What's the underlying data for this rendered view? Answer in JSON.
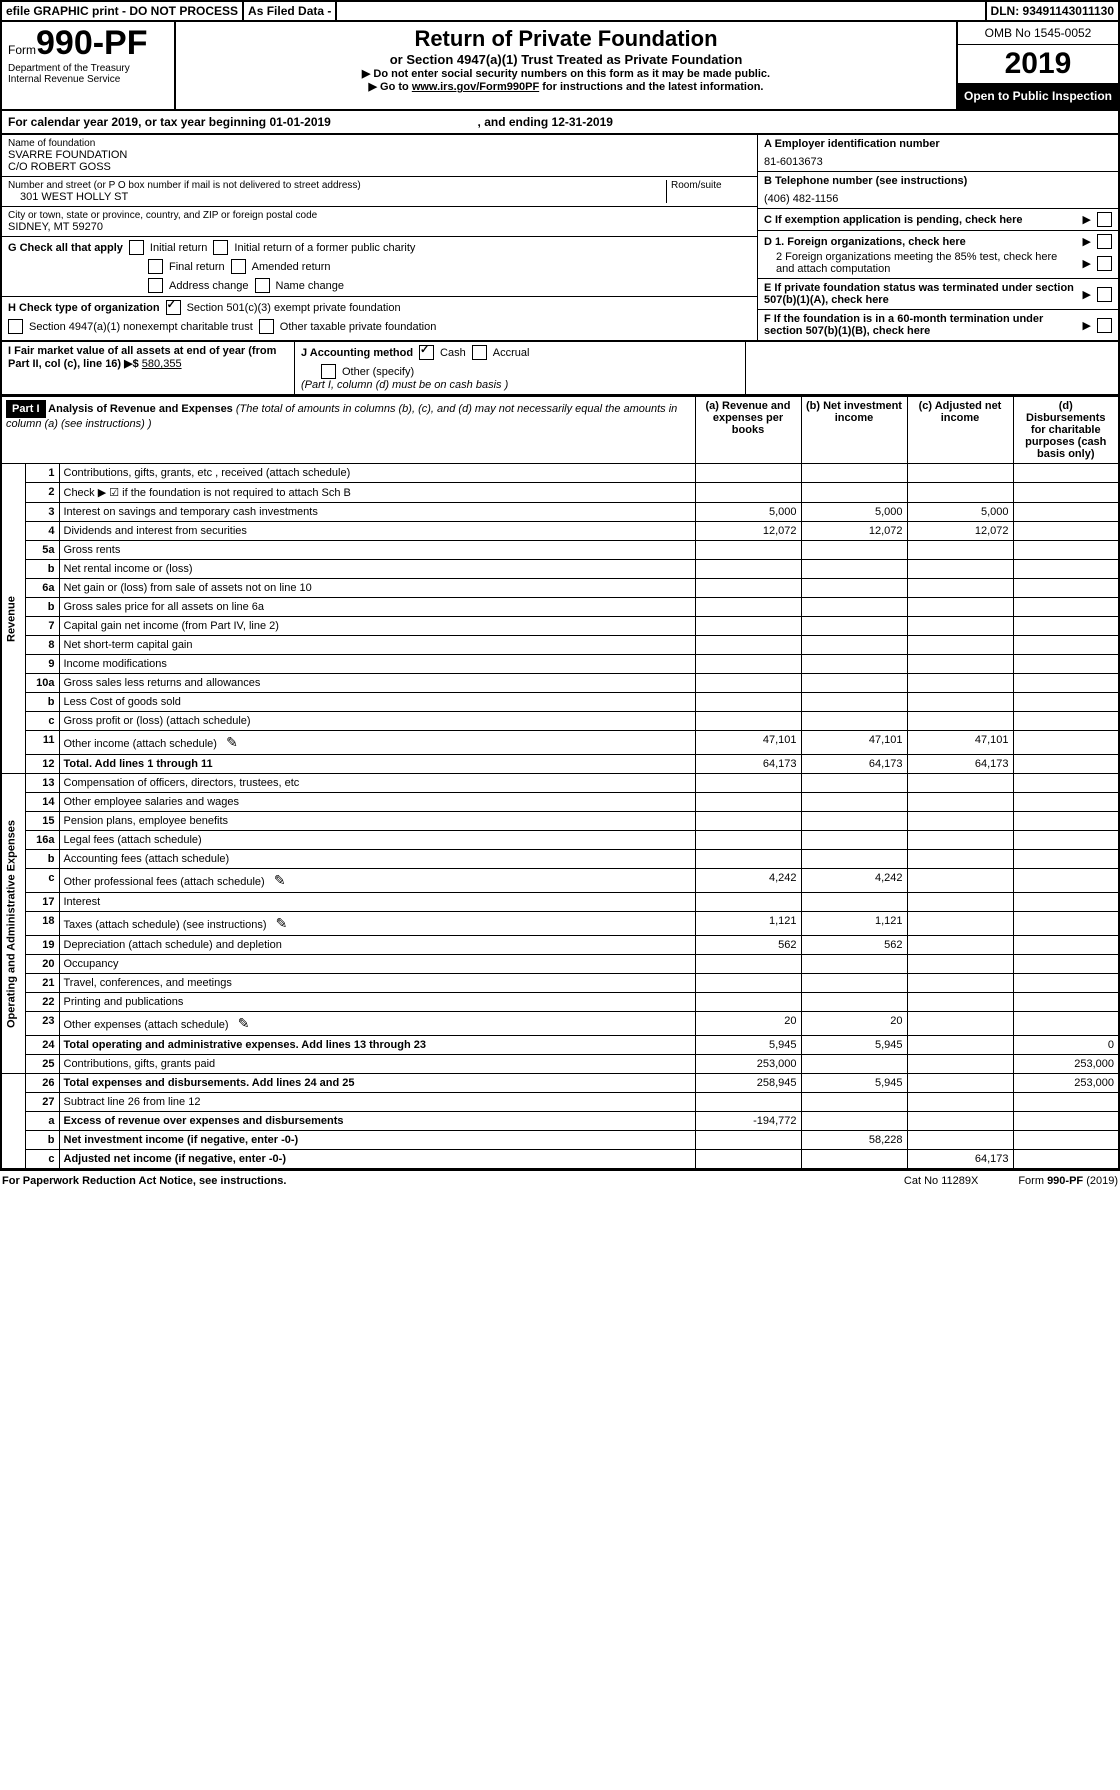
{
  "topbar": {
    "efile": "efile GRAPHIC print - DO NOT PROCESS",
    "asfiled": "As Filed Data -",
    "dln": "DLN: 93491143011130"
  },
  "header": {
    "form_prefix": "Form",
    "form_no": "990-PF",
    "dept1": "Department of the Treasury",
    "dept2": "Internal Revenue Service",
    "title": "Return of Private Foundation",
    "subtitle": "or Section 4947(a)(1) Trust Treated as Private Foundation",
    "instr1": "▶ Do not enter social security numbers on this form as it may be made public.",
    "instr2_pre": "▶ Go to ",
    "instr2_link": "www.irs.gov/Form990PF",
    "instr2_post": " for instructions and the latest information.",
    "omb": "OMB No 1545-0052",
    "year": "2019",
    "open": "Open to Public Inspection"
  },
  "calendar": {
    "pre": "For calendar year 2019, or tax year beginning ",
    "begin": "01-01-2019",
    "mid": ", and ending ",
    "end": "12-31-2019"
  },
  "name_block": {
    "label": "Name of foundation",
    "line1": "SVARRE FOUNDATION",
    "line2": "C/O ROBERT GOSS",
    "addr_label": "Number and street (or P O  box number if mail is not delivered to street address)",
    "addr": "301 WEST HOLLY ST",
    "room_label": "Room/suite",
    "city_label": "City or town, state or province, country, and ZIP or foreign postal code",
    "city": "SIDNEY, MT  59270"
  },
  "right_block": {
    "a_label": "A Employer identification number",
    "a_val": "81-6013673",
    "b_label": "B Telephone number (see instructions)",
    "b_val": "(406) 482-1156",
    "c_label": "C If exemption application is pending, check here",
    "d1": "D 1. Foreign organizations, check here",
    "d2": "2 Foreign organizations meeting the 85% test, check here and attach computation",
    "e": "E  If private foundation status was terminated under section 507(b)(1)(A), check here",
    "f": "F  If the foundation is in a 60-month termination under section 507(b)(1)(B), check here"
  },
  "g": {
    "label": "G Check all that apply",
    "opts": [
      "Initial return",
      "Initial return of a former public charity",
      "Final return",
      "Amended return",
      "Address change",
      "Name change"
    ]
  },
  "h": {
    "label": "H Check type of organization",
    "o1": "Section 501(c)(3) exempt private foundation",
    "o2": "Section 4947(a)(1) nonexempt charitable trust",
    "o3": "Other taxable private foundation"
  },
  "i": {
    "label": "I Fair market value of all assets at end of year (from Part II, col  (c), line 16) ▶$",
    "val": "580,355"
  },
  "j": {
    "label": "J Accounting method",
    "o1": "Cash",
    "o2": "Accrual",
    "o3": "Other (specify)",
    "note": "(Part I, column (d) must be on cash basis )"
  },
  "part1": {
    "tab": "Part I",
    "title": "Analysis of Revenue and Expenses",
    "sub": " (The total of amounts in columns (b), (c), and (d) may not necessarily equal the amounts in column (a) (see instructions) )",
    "col_a": "(a) Revenue and expenses per books",
    "col_b": "(b) Net investment income",
    "col_c": "(c) Adjusted net income",
    "col_d": "(d) Disbursements for charitable purposes (cash basis only)"
  },
  "side": {
    "rev": "Revenue",
    "exp": "Operating and Administrative Expenses"
  },
  "rows": [
    {
      "n": "1",
      "d": "Contributions, gifts, grants, etc , received (attach schedule)"
    },
    {
      "n": "2",
      "d": "Check ▶ ☑ if the foundation is not required to attach Sch B"
    },
    {
      "n": "3",
      "d": "Interest on savings and temporary cash investments",
      "a": "5,000",
      "b": "5,000",
      "c": "5,000"
    },
    {
      "n": "4",
      "d": "Dividends and interest from securities",
      "a": "12,072",
      "b": "12,072",
      "c": "12,072"
    },
    {
      "n": "5a",
      "d": "Gross rents"
    },
    {
      "n": "b",
      "d": "Net rental income or (loss)"
    },
    {
      "n": "6a",
      "d": "Net gain or (loss) from sale of assets not on line 10"
    },
    {
      "n": "b",
      "d": "Gross sales price for all assets on line 6a"
    },
    {
      "n": "7",
      "d": "Capital gain net income (from Part IV, line 2)"
    },
    {
      "n": "8",
      "d": "Net short-term capital gain"
    },
    {
      "n": "9",
      "d": "Income modifications"
    },
    {
      "n": "10a",
      "d": "Gross sales less returns and allowances"
    },
    {
      "n": "b",
      "d": "Less  Cost of goods sold"
    },
    {
      "n": "c",
      "d": "Gross profit or (loss) (attach schedule)"
    },
    {
      "n": "11",
      "d": "Other income (attach schedule)",
      "pen": true,
      "a": "47,101",
      "b": "47,101",
      "c": "47,101"
    },
    {
      "n": "12",
      "d": "Total. Add lines 1 through 11",
      "bold": true,
      "a": "64,173",
      "b": "64,173",
      "c": "64,173"
    },
    {
      "n": "13",
      "d": "Compensation of officers, directors, trustees, etc"
    },
    {
      "n": "14",
      "d": "Other employee salaries and wages"
    },
    {
      "n": "15",
      "d": "Pension plans, employee benefits"
    },
    {
      "n": "16a",
      "d": "Legal fees (attach schedule)"
    },
    {
      "n": "b",
      "d": "Accounting fees (attach schedule)"
    },
    {
      "n": "c",
      "d": "Other professional fees (attach schedule)",
      "pen": true,
      "a": "4,242",
      "b": "4,242"
    },
    {
      "n": "17",
      "d": "Interest"
    },
    {
      "n": "18",
      "d": "Taxes (attach schedule) (see instructions)",
      "pen": true,
      "a": "1,121",
      "b": "1,121"
    },
    {
      "n": "19",
      "d": "Depreciation (attach schedule) and depletion",
      "a": "562",
      "b": "562"
    },
    {
      "n": "20",
      "d": "Occupancy"
    },
    {
      "n": "21",
      "d": "Travel, conferences, and meetings"
    },
    {
      "n": "22",
      "d": "Printing and publications"
    },
    {
      "n": "23",
      "d": "Other expenses (attach schedule)",
      "pen": true,
      "a": "20",
      "b": "20"
    },
    {
      "n": "24",
      "d": "Total operating and administrative expenses. Add lines 13 through 23",
      "bold": true,
      "a": "5,945",
      "b": "5,945",
      "dd": "0"
    },
    {
      "n": "25",
      "d": "Contributions, gifts, grants paid",
      "a": "253,000",
      "dd": "253,000"
    },
    {
      "n": "26",
      "d": "Total expenses and disbursements. Add lines 24 and 25",
      "bold": true,
      "a": "258,945",
      "b": "5,945",
      "dd": "253,000"
    },
    {
      "n": "27",
      "d": "Subtract line 26 from line 12"
    },
    {
      "n": "a",
      "d": "Excess of revenue over expenses and disbursements",
      "bold": true,
      "a": "-194,772"
    },
    {
      "n": "b",
      "d": "Net investment income (if negative, enter -0-)",
      "bold": true,
      "b": "58,228"
    },
    {
      "n": "c",
      "d": "Adjusted net income (if negative, enter -0-)",
      "bold": true,
      "c": "64,173"
    }
  ],
  "footer": {
    "left": "For Paperwork Reduction Act Notice, see instructions.",
    "mid": "Cat  No  11289X",
    "right": "Form 990-PF (2019)"
  }
}
